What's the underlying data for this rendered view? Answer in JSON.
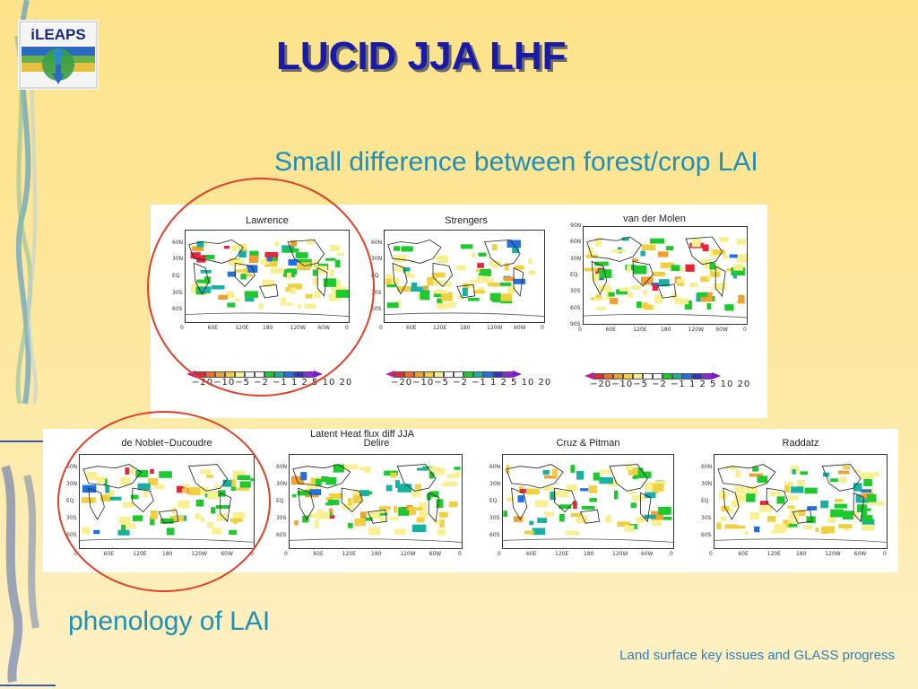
{
  "slide": {
    "title": "LUCID JJA LHF",
    "subtitle": "Small difference between forest/crop LAI",
    "note": "phenology of LAI",
    "footer": "Land surface key issues and GLASS progress",
    "logo_text": "iLEAPS"
  },
  "figure": {
    "suptitle_line1": "Latent Heat flux diff JJA",
    "colorbar_labels": "−20−10−5 −2 −1  1   2   5  10 20",
    "colorbar_colors": [
      "#e8243a",
      "#f06a2a",
      "#f0a030",
      "#f0d040",
      "#f8f090",
      "#ffffff",
      "#ffffff",
      "#20c830",
      "#18b0a0",
      "#2070e0",
      "#3030c0",
      "#8a2ad8"
    ],
    "lat_labels_small": [
      "60N",
      "30N",
      "EQ",
      "30S",
      "60S"
    ],
    "lat_labels_full": [
      "90N",
      "60N",
      "30N",
      "EQ",
      "30S",
      "60S",
      "90S"
    ],
    "lon_labels": [
      "0",
      "60E",
      "120E",
      "180",
      "120W",
      "60W",
      "0"
    ],
    "maps": [
      {
        "name": "Lawrence"
      },
      {
        "name": "Strengers"
      },
      {
        "name": "van der Molen"
      },
      {
        "name": "de Noblet−Ducoudre"
      },
      {
        "name": "Delire"
      },
      {
        "name": "Cruz & Pitman"
      },
      {
        "name": "Raddatz"
      }
    ]
  }
}
